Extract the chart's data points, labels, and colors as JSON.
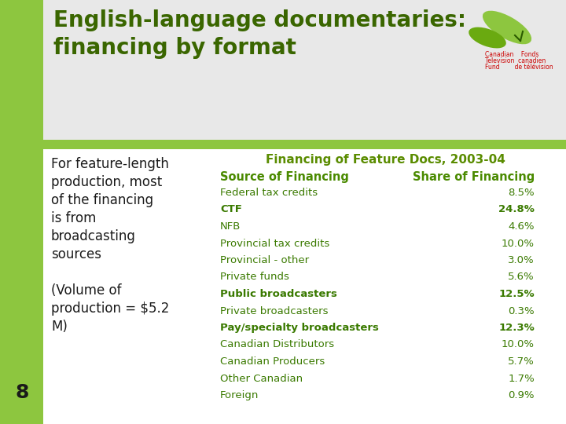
{
  "title_line1": "English-language documentaries:",
  "title_line2": "financing by format",
  "title_color": "#3a6600",
  "title_bg_color": "#e8e8e8",
  "green_bar_color": "#8dc63f",
  "white_bg": "#ffffff",
  "table_title": "Financing of Feature Docs, 2003-04",
  "table_title_color": "#5a8c00",
  "col_header1": "Source of Financing",
  "col_header2": "Share of Financing",
  "col_header_color": "#4a8a00",
  "left_text": [
    "For feature-length",
    "production, most",
    "of the financing",
    "is from",
    "broadcasting",
    "sources",
    "",
    "(Volume of",
    "production = $5.2",
    "M)"
  ],
  "left_text_color": "#1a1a1a",
  "slide_number": "8",
  "slide_number_color": "#1a1a1a",
  "rows": [
    {
      "source": "Federal tax credits",
      "share": "8.5%",
      "bold": false
    },
    {
      "source": "CTF",
      "share": "24.8%",
      "bold": true
    },
    {
      "source": "NFB",
      "share": "4.6%",
      "bold": false
    },
    {
      "source": "Provincial tax credits",
      "share": "10.0%",
      "bold": false
    },
    {
      "source": "Provincial - other",
      "share": "3.0%",
      "bold": false
    },
    {
      "source": "Private funds",
      "share": "5.6%",
      "bold": false
    },
    {
      "source": "Public broadcasters",
      "share": "12.5%",
      "bold": true
    },
    {
      "source": "Private broadcasters",
      "share": "0.3%",
      "bold": false
    },
    {
      "source": "Pay/specialty broadcasters",
      "share": "12.3%",
      "bold": true
    },
    {
      "source": "Canadian Distributors",
      "share": "10.0%",
      "bold": false
    },
    {
      "source": "Canadian Producers",
      "share": "5.7%",
      "bold": false
    },
    {
      "source": "Other Canadian",
      "share": "1.7%",
      "bold": false
    },
    {
      "source": "Foreign",
      "share": "0.9%",
      "bold": false
    }
  ],
  "normal_color": "#3a7a00",
  "bold_color": "#3a7a00",
  "logo_text1": [
    "Canadian",
    "Fonds"
  ],
  "logo_text2": [
    "Television",
    "canadien"
  ],
  "logo_text3": [
    "Fund",
    "de télévision"
  ],
  "logo_color": "#cc0000"
}
